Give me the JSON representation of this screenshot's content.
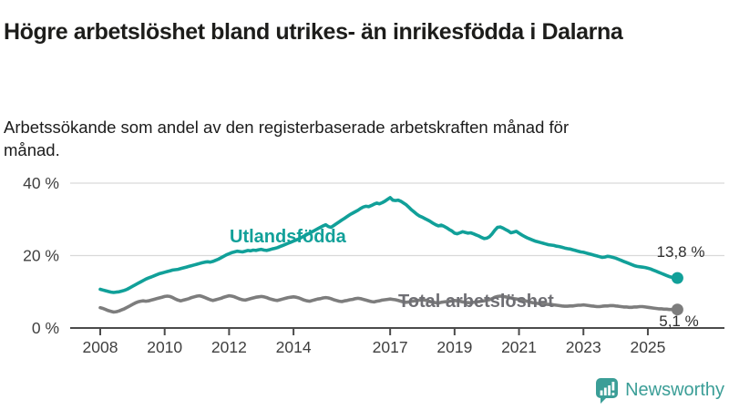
{
  "header": {
    "title": "Högre arbetslöshet bland utrikes- än inrikesfödda i Dalarna",
    "subtitle": "Arbetssökande som andel av den registerbaserade arbetskraften månad för månad."
  },
  "chart_data": {
    "type": "line",
    "x_start_year": 2008,
    "x_frequency": "monthly",
    "x_ticks": [
      2008,
      2010,
      2012,
      2014,
      2017,
      2019,
      2021,
      2023,
      2025
    ],
    "y_ticks": [
      {
        "value": 0,
        "label": "0 %"
      },
      {
        "value": 20,
        "label": "20 %"
      },
      {
        "value": 40,
        "label": "40 %"
      }
    ],
    "ylim": [
      0,
      44
    ],
    "grid": "horizontal",
    "legend_position": "inline-labels",
    "series": [
      {
        "name": "Utlandsfödda",
        "color": "#11a099",
        "end_label": "13,8 %",
        "end_value": 13.8,
        "values": [
          10.7,
          10.5,
          10.3,
          10.1,
          9.9,
          9.8,
          9.9,
          10.0,
          10.2,
          10.4,
          10.7,
          11.1,
          11.5,
          11.9,
          12.3,
          12.7,
          13.1,
          13.5,
          13.8,
          14.1,
          14.4,
          14.7,
          15.0,
          15.2,
          15.4,
          15.6,
          15.8,
          16.0,
          16.1,
          16.2,
          16.4,
          16.6,
          16.8,
          17.0,
          17.2,
          17.4,
          17.6,
          17.8,
          18.0,
          18.2,
          18.3,
          18.2,
          18.4,
          18.7,
          19.0,
          19.4,
          19.8,
          20.2,
          20.5,
          20.8,
          21.0,
          21.2,
          21.1,
          21.0,
          21.2,
          21.4,
          21.3,
          21.5,
          21.4,
          21.6,
          21.7,
          21.5,
          21.4,
          21.6,
          21.8,
          22.0,
          22.2,
          22.5,
          22.8,
          23.1,
          23.4,
          23.7,
          24.0,
          24.3,
          24.6,
          25.0,
          25.4,
          25.8,
          26.2,
          26.6,
          27.0,
          27.4,
          27.8,
          28.2,
          28.5,
          28.0,
          27.8,
          28.3,
          28.8,
          29.3,
          29.8,
          30.3,
          30.8,
          31.3,
          31.7,
          32.1,
          32.5,
          33.0,
          33.4,
          33.6,
          33.5,
          33.8,
          34.2,
          34.5,
          34.3,
          34.6,
          35.0,
          35.5,
          36.0,
          35.3,
          35.2,
          35.3,
          35.0,
          34.5,
          34.0,
          33.3,
          32.6,
          32.0,
          31.4,
          30.9,
          30.6,
          30.2,
          29.8,
          29.4,
          28.9,
          28.5,
          28.2,
          28.4,
          28.1,
          27.7,
          27.2,
          26.8,
          26.2,
          26.0,
          26.3,
          26.6,
          26.4,
          26.2,
          26.3,
          26.0,
          25.7,
          25.4,
          25.0,
          24.7,
          24.8,
          25.2,
          26.0,
          27.0,
          27.8,
          27.9,
          27.6,
          27.2,
          26.8,
          26.3,
          26.5,
          26.7,
          26.2,
          25.7,
          25.3,
          24.9,
          24.6,
          24.3,
          24.0,
          23.8,
          23.6,
          23.4,
          23.2,
          23.0,
          22.9,
          22.8,
          22.6,
          22.5,
          22.3,
          22.1,
          21.9,
          21.8,
          21.6,
          21.4,
          21.2,
          21.0,
          20.9,
          20.7,
          20.5,
          20.3,
          20.1,
          19.9,
          19.7,
          19.5,
          19.6,
          19.8,
          19.7,
          19.5,
          19.3,
          19.0,
          18.7,
          18.4,
          18.1,
          17.8,
          17.5,
          17.2,
          17.0,
          16.9,
          16.8,
          16.7,
          16.5,
          16.3,
          16.0,
          15.7,
          15.4,
          15.1,
          14.8,
          14.5,
          14.2,
          14.0,
          13.9,
          13.8
        ]
      },
      {
        "name": "Total arbetslöshet",
        "color": "#7d7d7d",
        "end_label": "5,1 %",
        "end_value": 5.1,
        "values": [
          5.6,
          5.4,
          5.1,
          4.8,
          4.6,
          4.4,
          4.5,
          4.7,
          5.0,
          5.3,
          5.7,
          6.1,
          6.5,
          6.9,
          7.2,
          7.4,
          7.5,
          7.4,
          7.5,
          7.7,
          7.9,
          8.1,
          8.3,
          8.5,
          8.7,
          8.8,
          8.7,
          8.4,
          8.0,
          7.7,
          7.5,
          7.7,
          7.9,
          8.1,
          8.4,
          8.6,
          8.8,
          8.9,
          8.7,
          8.4,
          8.1,
          7.8,
          7.6,
          7.8,
          8.0,
          8.2,
          8.5,
          8.7,
          8.9,
          8.8,
          8.6,
          8.3,
          8.0,
          7.8,
          7.7,
          7.9,
          8.1,
          8.3,
          8.5,
          8.6,
          8.7,
          8.6,
          8.4,
          8.1,
          7.9,
          7.7,
          7.6,
          7.8,
          8.0,
          8.2,
          8.4,
          8.5,
          8.6,
          8.5,
          8.3,
          8.0,
          7.7,
          7.5,
          7.4,
          7.6,
          7.8,
          8.0,
          8.1,
          8.3,
          8.4,
          8.3,
          8.1,
          7.8,
          7.6,
          7.4,
          7.3,
          7.5,
          7.6,
          7.8,
          7.9,
          8.1,
          8.2,
          8.1,
          7.9,
          7.7,
          7.5,
          7.3,
          7.2,
          7.4,
          7.5,
          7.7,
          7.8,
          7.9,
          8.0,
          7.9,
          7.8,
          7.6,
          7.4,
          7.2,
          7.1,
          7.2,
          7.4,
          7.5,
          7.6,
          7.7,
          7.8,
          7.7,
          7.5,
          7.3,
          7.1,
          7.0,
          6.9,
          7.1,
          7.2,
          7.3,
          7.4,
          7.5,
          7.6,
          7.5,
          7.4,
          7.2,
          7.1,
          7.0,
          7.0,
          7.1,
          7.2,
          7.3,
          7.4,
          7.5,
          7.7,
          7.8,
          8.1,
          8.5,
          8.7,
          8.8,
          8.7,
          8.6,
          8.4,
          8.3,
          8.1,
          8.0,
          7.9,
          7.8,
          7.6,
          7.4,
          7.2,
          7.0,
          6.9,
          6.8,
          6.7,
          6.6,
          6.6,
          6.5,
          6.5,
          6.4,
          6.3,
          6.2,
          6.1,
          6.0,
          6.0,
          6.1,
          6.1,
          6.2,
          6.3,
          6.3,
          6.4,
          6.3,
          6.2,
          6.1,
          6.0,
          5.9,
          5.9,
          6.0,
          6.1,
          6.1,
          6.2,
          6.2,
          6.1,
          6.0,
          5.9,
          5.8,
          5.8,
          5.7,
          5.7,
          5.8,
          5.8,
          5.9,
          5.9,
          5.8,
          5.7,
          5.6,
          5.5,
          5.4,
          5.3,
          5.3,
          5.2,
          5.2,
          5.1,
          5.1,
          5.1,
          5.1
        ]
      }
    ]
  },
  "annotations": {
    "series0_label": "Utlandsfödda",
    "series1_label": "Total arbetslöshet",
    "end0_label": "13,8 %",
    "end1_label": "5,1 %"
  },
  "footer": {
    "brand": "Newsworthy",
    "logo_icon": "bar-chart-speech-bubble"
  },
  "colors": {
    "teal": "#11a099",
    "gray_line": "#7d7d7d",
    "gray_label": "#6f6f74",
    "axis": "#4b4b4b",
    "axis_text": "#3f3f3f",
    "grid": "#d9d9d9",
    "title_text": "#1d1d1b",
    "annotation_text": "#2e2e2e",
    "brand": "#3b9e97"
  }
}
